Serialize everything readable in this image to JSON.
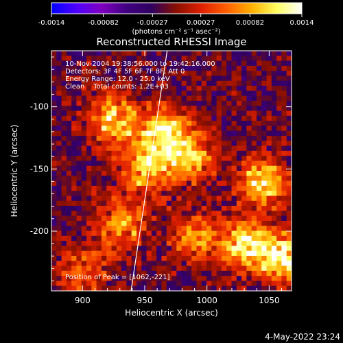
{
  "chart_data": {
    "type": "heatmap",
    "title": "Reconstructed RHESSI Image",
    "xlabel": "Heliocentric X (arcsec)",
    "ylabel": "Heliocentric Y (arcsec)",
    "xlim": [
      875,
      1068
    ],
    "ylim": [
      -248,
      -55
    ],
    "x_ticks": [
      900,
      950,
      1000,
      1050
    ],
    "y_ticks": [
      -100,
      -150,
      -200
    ],
    "colorbar": {
      "range": [
        -0.0014,
        0.0014
      ],
      "ticks": [
        "-0.0014",
        "-0.00082",
        "-0.00027",
        "0.00027",
        "0.00082",
        "0.0014"
      ],
      "unit_label": "(photons cm⁻² s⁻¹ asec⁻²)",
      "colormap": [
        "#0000ff",
        "#5000ff",
        "#8000c0",
        "#400080",
        "#300060",
        "#8a1000",
        "#e02000",
        "#ff6000",
        "#ffb000",
        "#ffff60",
        "#ffffff"
      ]
    },
    "info_lines": [
      "10-Nov-2004 19:38:56.000 to 19:42:16.000",
      "Detectors: 3F 4F 5F 6F 7F 8F, Att 0",
      "Energy Range: 12.0 - 25.0 keV",
      "Clean    Total counts: 1.2E+03"
    ],
    "peak_label": "Position of Peak = [1062,-221]",
    "peak": [
      1062,
      -221
    ],
    "limb_line": [
      [
        939,
        -248
      ],
      [
        968,
        -55
      ]
    ],
    "grid_cells": [
      48,
      48
    ],
    "hotspots": [
      {
        "x": 925,
        "y": -110,
        "v": 1.0
      },
      {
        "x": 965,
        "y": -120,
        "v": 1.0
      },
      {
        "x": 985,
        "y": -140,
        "v": 0.9
      },
      {
        "x": 950,
        "y": -150,
        "v": 0.9
      },
      {
        "x": 930,
        "y": -195,
        "v": 0.8
      },
      {
        "x": 1045,
        "y": -160,
        "v": 1.0
      },
      {
        "x": 1030,
        "y": -210,
        "v": 1.1
      },
      {
        "x": 1062,
        "y": -221,
        "v": 1.2
      },
      {
        "x": 990,
        "y": -205,
        "v": 0.7
      },
      {
        "x": 900,
        "y": -235,
        "v": 0.6
      }
    ]
  },
  "footer": {
    "timestamp": "4-May-2022 23:24"
  }
}
